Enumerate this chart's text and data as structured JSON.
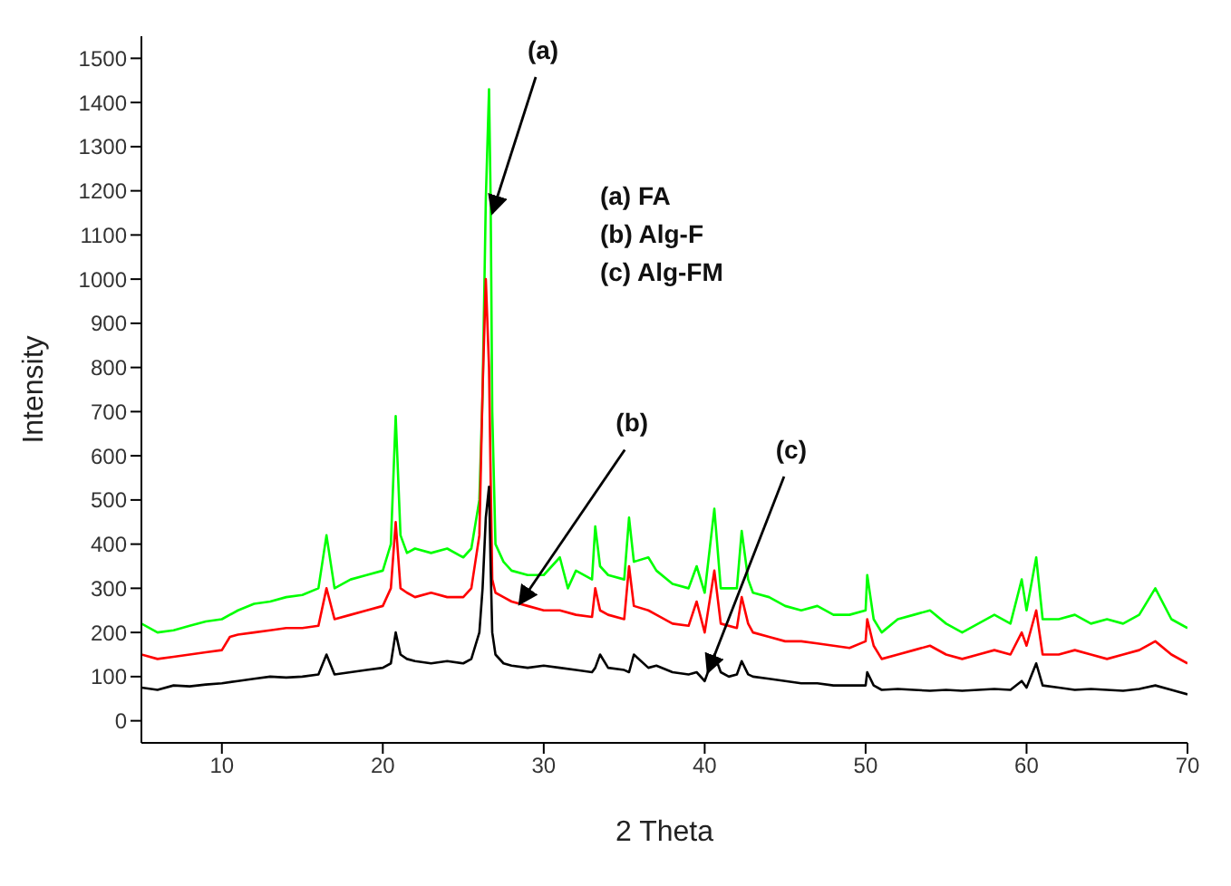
{
  "chart_data": {
    "type": "line",
    "xlabel": "2 Theta",
    "ylabel": "Intensity",
    "xlim": [
      5,
      70
    ],
    "xticks": [
      10,
      20,
      30,
      40,
      50,
      60,
      70
    ],
    "ylim": [
      -50,
      1550
    ],
    "yticks": [
      0,
      100,
      200,
      300,
      400,
      500,
      600,
      700,
      800,
      900,
      1000,
      1100,
      1200,
      1300,
      1400,
      1500
    ],
    "marker": "none",
    "line_style": "solid",
    "annotations": [
      "(a) FA",
      "(b) Alg-F",
      "(c) Alg-FM",
      {
        "text": "(a)",
        "x": 26.8,
        "y": 1150
      },
      {
        "text": "(b)",
        "x": 28.5,
        "y": 265
      },
      {
        "text": "(c)",
        "x": 40.2,
        "y": 110
      }
    ],
    "series": [
      {
        "color": "#00ff00",
        "x": [
          5,
          6,
          7,
          8,
          9,
          10,
          11,
          12,
          13,
          14,
          15,
          16,
          16.5,
          17,
          18,
          19,
          20,
          20.5,
          20.8,
          21.1,
          21.5,
          22,
          23,
          24,
          25,
          25.5,
          26,
          26.2,
          26.4,
          26.6,
          26.7,
          26.8,
          27,
          27.5,
          28,
          29,
          30,
          31,
          31.5,
          32,
          33,
          33.2,
          33.5,
          34,
          35,
          35.3,
          35.6,
          36.5,
          37,
          38,
          39,
          39.5,
          40,
          40.6,
          41,
          42,
          42.3,
          42.7,
          43,
          44,
          45,
          46,
          47,
          48,
          49,
          50,
          50.1,
          50.5,
          51,
          52,
          53,
          54,
          55,
          56,
          57,
          58,
          59,
          59.7,
          60,
          60.6,
          61,
          62,
          63,
          64,
          65,
          66,
          67,
          68,
          69,
          70
        ],
        "values": [
          220,
          200,
          205,
          215,
          225,
          230,
          250,
          265,
          270,
          280,
          285,
          300,
          420,
          300,
          320,
          330,
          340,
          400,
          690,
          420,
          380,
          390,
          380,
          390,
          370,
          390,
          500,
          740,
          1180,
          1430,
          1180,
          700,
          400,
          360,
          340,
          330,
          330,
          370,
          300,
          340,
          320,
          440,
          350,
          330,
          320,
          460,
          360,
          370,
          340,
          310,
          300,
          350,
          290,
          480,
          300,
          300,
          430,
          320,
          290,
          280,
          260,
          250,
          260,
          240,
          240,
          250,
          330,
          230,
          200,
          230,
          240,
          250,
          220,
          200,
          220,
          240,
          220,
          320,
          250,
          370,
          230,
          230,
          240,
          220,
          230,
          220,
          240,
          300,
          230,
          210
        ]
      },
      {
        "color": "#ff0000",
        "x": [
          5,
          6,
          7,
          8,
          9,
          10,
          10.5,
          11,
          12,
          13,
          14,
          15,
          16,
          16.5,
          17,
          18,
          19,
          20,
          20.5,
          20.8,
          21.1,
          21.5,
          22,
          23,
          24,
          25,
          25.5,
          26,
          26.2,
          26.4,
          26.6,
          26.7,
          26.8,
          27,
          27.5,
          28,
          29,
          30,
          31,
          32,
          33,
          33.2,
          33.5,
          34,
          35,
          35.3,
          35.6,
          36.5,
          37,
          38,
          39,
          39.5,
          40,
          40.6,
          41,
          42,
          42.3,
          42.7,
          43,
          44,
          45,
          46,
          47,
          48,
          49,
          50,
          50.1,
          50.5,
          51,
          52,
          53,
          54,
          55,
          56,
          57,
          58,
          59,
          59.7,
          60,
          60.6,
          61,
          62,
          63,
          64,
          65,
          66,
          67,
          68,
          69,
          70
        ],
        "values": [
          150,
          140,
          145,
          150,
          155,
          160,
          190,
          195,
          200,
          205,
          210,
          210,
          215,
          300,
          230,
          240,
          250,
          260,
          300,
          450,
          300,
          290,
          280,
          290,
          280,
          280,
          300,
          420,
          750,
          1000,
          800,
          550,
          320,
          290,
          280,
          270,
          260,
          250,
          250,
          240,
          235,
          300,
          250,
          240,
          230,
          350,
          260,
          250,
          240,
          220,
          215,
          270,
          200,
          340,
          220,
          210,
          280,
          220,
          200,
          190,
          180,
          180,
          175,
          170,
          165,
          180,
          230,
          170,
          140,
          150,
          160,
          170,
          150,
          140,
          150,
          160,
          150,
          200,
          170,
          250,
          150,
          150,
          160,
          150,
          140,
          150,
          160,
          180,
          150,
          130
        ]
      },
      {
        "color": "#000000",
        "x": [
          5,
          6,
          7,
          8,
          9,
          10,
          11,
          12,
          13,
          14,
          15,
          16,
          16.5,
          17,
          18,
          19,
          20,
          20.5,
          20.8,
          21.1,
          21.5,
          22,
          23,
          24,
          25,
          25.5,
          26,
          26.2,
          26.4,
          26.6,
          26.7,
          26.8,
          27,
          27.5,
          28,
          29,
          30,
          31,
          32,
          33,
          33.2,
          33.5,
          34,
          35,
          35.3,
          35.6,
          36.5,
          37,
          38,
          39,
          39.5,
          40,
          40.6,
          41,
          41.5,
          42,
          42.3,
          42.7,
          43,
          44,
          45,
          46,
          47,
          48,
          49,
          50,
          50.1,
          50.5,
          51,
          52,
          53,
          54,
          55,
          56,
          57,
          58,
          59,
          59.7,
          60,
          60.6,
          61,
          62,
          63,
          64,
          65,
          66,
          67,
          68,
          69,
          70
        ],
        "values": [
          75,
          70,
          80,
          78,
          82,
          85,
          90,
          95,
          100,
          98,
          100,
          105,
          150,
          105,
          110,
          115,
          120,
          130,
          200,
          150,
          140,
          135,
          130,
          135,
          130,
          140,
          200,
          300,
          460,
          530,
          350,
          200,
          150,
          130,
          125,
          120,
          125,
          120,
          115,
          110,
          120,
          150,
          120,
          115,
          110,
          150,
          120,
          125,
          110,
          105,
          110,
          90,
          150,
          110,
          100,
          105,
          135,
          105,
          100,
          95,
          90,
          85,
          85,
          80,
          80,
          80,
          110,
          80,
          70,
          72,
          70,
          68,
          70,
          68,
          70,
          72,
          70,
          90,
          75,
          130,
          80,
          75,
          70,
          72,
          70,
          68,
          72,
          80,
          70,
          60
        ]
      }
    ]
  }
}
